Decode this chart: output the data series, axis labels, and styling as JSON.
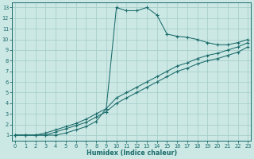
{
  "xlabel": "Humidex (Indice chaleur)",
  "bg_color": "#cce8e4",
  "line_color": "#1a6b6b",
  "grid_color": "#a8d0cc",
  "xlim": [
    -0.3,
    23.3
  ],
  "ylim": [
    0.5,
    13.5
  ],
  "xticks": [
    0,
    1,
    2,
    3,
    4,
    5,
    6,
    7,
    8,
    9,
    10,
    11,
    12,
    13,
    14,
    15,
    16,
    17,
    18,
    19,
    20,
    21,
    22,
    23
  ],
  "yticks": [
    1,
    2,
    3,
    4,
    5,
    6,
    7,
    8,
    9,
    10,
    11,
    12,
    13
  ],
  "lines": [
    {
      "x": [
        0,
        1,
        2,
        3,
        4,
        5,
        6,
        7,
        8,
        9,
        10,
        11,
        12,
        13,
        14,
        15,
        16,
        17,
        18,
        19,
        20,
        21,
        22,
        23
      ],
      "y": [
        1.0,
        1.0,
        1.0,
        1.0,
        1.0,
        1.2,
        1.5,
        1.8,
        2.3,
        3.5,
        13.0,
        12.7,
        12.7,
        13.0,
        12.3,
        10.5,
        10.3,
        10.2,
        10.0,
        9.7,
        9.5,
        9.5,
        9.7,
        10.0
      ]
    },
    {
      "x": [
        0,
        1,
        2,
        3,
        4,
        5,
        6,
        7,
        8,
        9,
        10,
        11,
        12,
        13,
        14,
        15,
        16,
        17,
        18,
        19,
        20,
        21,
        22,
        23
      ],
      "y": [
        1.0,
        1.0,
        1.0,
        1.2,
        1.5,
        1.8,
        2.1,
        2.5,
        3.0,
        3.5,
        4.5,
        5.0,
        5.5,
        6.0,
        6.5,
        7.0,
        7.5,
        7.8,
        8.2,
        8.5,
        8.7,
        9.0,
        9.3,
        9.7
      ]
    },
    {
      "x": [
        0,
        1,
        2,
        3,
        4,
        5,
        6,
        7,
        8,
        9,
        10,
        11,
        12,
        13,
        14,
        15,
        16,
        17,
        18,
        19,
        20,
        21,
        22,
        23
      ],
      "y": [
        1.0,
        1.0,
        1.0,
        1.0,
        1.3,
        1.6,
        1.9,
        2.2,
        2.7,
        3.2,
        4.0,
        4.5,
        5.0,
        5.5,
        6.0,
        6.5,
        7.0,
        7.3,
        7.7,
        8.0,
        8.2,
        8.5,
        8.8,
        9.3
      ]
    }
  ]
}
